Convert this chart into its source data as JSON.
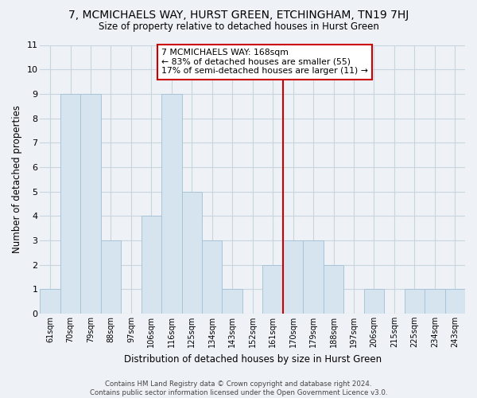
{
  "title": "7, MCMICHAELS WAY, HURST GREEN, ETCHINGHAM, TN19 7HJ",
  "subtitle": "Size of property relative to detached houses in Hurst Green",
  "xlabel": "Distribution of detached houses by size in Hurst Green",
  "ylabel": "Number of detached properties",
  "bar_labels": [
    "61sqm",
    "70sqm",
    "79sqm",
    "88sqm",
    "97sqm",
    "106sqm",
    "116sqm",
    "125sqm",
    "134sqm",
    "143sqm",
    "152sqm",
    "161sqm",
    "170sqm",
    "179sqm",
    "188sqm",
    "197sqm",
    "206sqm",
    "215sqm",
    "225sqm",
    "234sqm",
    "243sqm"
  ],
  "bar_values": [
    1,
    9,
    9,
    3,
    0,
    4,
    9,
    5,
    3,
    1,
    0,
    2,
    3,
    3,
    2,
    0,
    1,
    0,
    1,
    1,
    1
  ],
  "bar_color": "#d6e4f0",
  "bar_edge_color": "#a8c4d8",
  "reference_line_x": 11.5,
  "reference_line_color": "#cc0000",
  "annotation_line1": "7 MCMICHAELS WAY: 168sqm",
  "annotation_line2": "← 83% of detached houses are smaller (55)",
  "annotation_line3": "17% of semi-detached houses are larger (11) →",
  "annotation_box_color": "#ffffff",
  "annotation_box_edge_color": "#cc0000",
  "ylim": [
    0,
    11
  ],
  "yticks": [
    0,
    1,
    2,
    3,
    4,
    5,
    6,
    7,
    8,
    9,
    10,
    11
  ],
  "footer_text": "Contains HM Land Registry data © Crown copyright and database right 2024.\nContains public sector information licensed under the Open Government Licence v3.0.",
  "grid_color": "#c8d4de",
  "background_color": "#eef2f7"
}
